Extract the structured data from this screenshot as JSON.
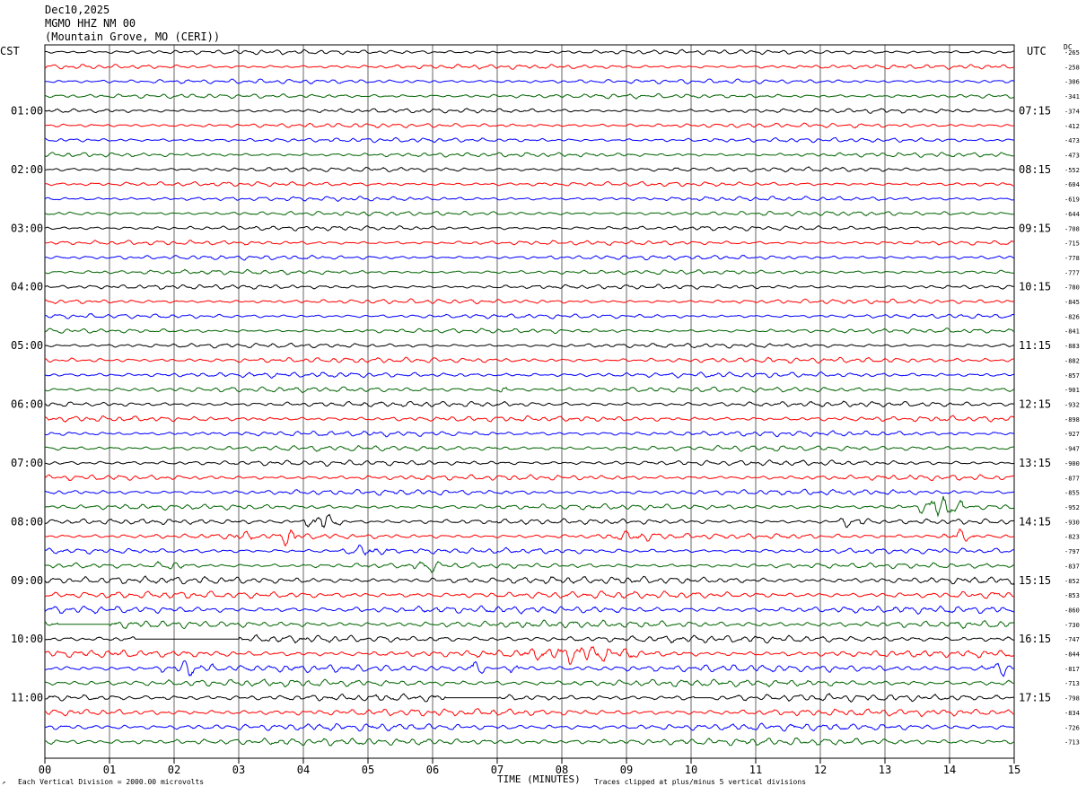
{
  "header": {
    "date": "Dec10,2025",
    "station": "MGMO HHZ NM 00",
    "location": "(Mountain Grove, MO (CERI))"
  },
  "left_tz": "CST",
  "right_tz": "UTC",
  "dc_label": "DC",
  "footer": {
    "left": "Each Vertical Division = 2000.00 microvolts",
    "center": "TIME (MINUTES)",
    "right": "Traces clipped at plus/minus 5 vertical divisions"
  },
  "chart_data": {
    "type": "line",
    "title": "MGMO HHZ NM 00",
    "xlabel": "TIME (MINUTES)",
    "xlim": [
      0,
      15
    ],
    "x_ticks": [
      "00",
      "01",
      "02",
      "03",
      "04",
      "05",
      "06",
      "07",
      "08",
      "09",
      "10",
      "11",
      "12",
      "13",
      "14",
      "15"
    ],
    "trace_count": 48,
    "minutes_per_trace": 15,
    "trace_colors": [
      "#000000",
      "#ff0000",
      "#0000ff",
      "#006400"
    ],
    "left_time_labels": [
      "01:00",
      "02:00",
      "03:00",
      "04:00",
      "05:00",
      "06:00",
      "07:00",
      "08:00",
      "09:00",
      "10:00",
      "11:00"
    ],
    "right_time_labels": [
      "07:15",
      "08:15",
      "09:15",
      "10:15",
      "11:15",
      "12:15",
      "13:15",
      "14:15",
      "15:15",
      "16:15",
      "17:15"
    ],
    "dc_offsets": [
      "-265",
      "-258",
      "-306",
      "-341",
      "-374",
      "-412",
      "-473",
      "-473",
      "-552",
      "-604",
      "-619",
      "-644",
      "-708",
      "-715",
      "-778",
      "-777",
      "-780",
      "-845",
      "-826",
      "-841",
      "-883",
      "-882",
      "-857",
      "-901",
      "-932",
      "-898",
      "-927",
      "-947",
      "-900",
      "-877",
      "-855",
      "-952",
      "-930",
      "-823",
      "-797",
      "-837",
      "-852",
      "-853",
      "-860",
      "-730",
      "-747",
      "-844",
      "-817",
      "-713",
      "-798",
      "-834",
      "-726",
      "-713"
    ],
    "events": [
      {
        "trace": 23,
        "start_min": 7.0,
        "end_min": 7.15,
        "amp": 1.4
      },
      {
        "trace": 31,
        "start_min": 13.5,
        "end_min": 14.2,
        "amp": 3.2
      },
      {
        "trace": 32,
        "start_min": 4.0,
        "end_min": 4.6,
        "amp": 2.6
      },
      {
        "trace": 32,
        "start_min": 12.2,
        "end_min": 12.8,
        "amp": 1.4
      },
      {
        "trace": 33,
        "start_min": 2.8,
        "end_min": 3.2,
        "amp": 1.4
      },
      {
        "trace": 33,
        "start_min": 3.6,
        "end_min": 4.0,
        "amp": 2.4
      },
      {
        "trace": 33,
        "start_min": 8.6,
        "end_min": 9.6,
        "amp": 1.0
      },
      {
        "trace": 33,
        "start_min": 13.9,
        "end_min": 14.4,
        "amp": 1.6
      },
      {
        "trace": 34,
        "start_min": 4.6,
        "end_min": 5.3,
        "amp": 1.3
      },
      {
        "trace": 35,
        "start_min": 1.7,
        "end_min": 2.2,
        "amp": 1.3
      },
      {
        "trace": 35,
        "start_min": 5.7,
        "end_min": 6.2,
        "amp": 1.1
      },
      {
        "trace": 41,
        "start_min": 7.4,
        "end_min": 9.2,
        "amp": 1.4
      },
      {
        "trace": 42,
        "start_min": 1.8,
        "end_min": 2.6,
        "amp": 1.3
      },
      {
        "trace": 42,
        "start_min": 6.5,
        "end_min": 6.8,
        "amp": 1.6
      },
      {
        "trace": 42,
        "start_min": 7.2,
        "end_min": 7.4,
        "amp": 1.6
      },
      {
        "trace": 42,
        "start_min": 14.5,
        "end_min": 15.0,
        "amp": 1.3
      }
    ],
    "gaps": [
      {
        "trace": 39,
        "start_min": 0.2,
        "end_min": 1.0
      },
      {
        "trace": 40,
        "start_min": 1.4,
        "end_min": 3.0
      },
      {
        "trace": 44,
        "start_min": 6.2,
        "end_min": 7.0
      },
      {
        "trace": 44,
        "start_min": 10.05,
        "end_min": 10.3
      }
    ]
  }
}
